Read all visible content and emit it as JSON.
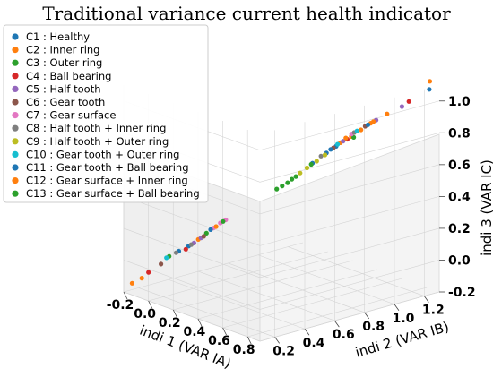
{
  "chart_data": {
    "type": "scatter",
    "title": "Traditional variance current health indicator",
    "xlabel": "indi 1 (VAR IA)",
    "ylabel": "indi 2 (VAR IB)",
    "zlabel": "indi 3 (VAR IC)",
    "x_ticks": [
      "-0.2",
      "0.0",
      "0.2",
      "0.4",
      "0.6",
      "0.8"
    ],
    "y_ticks": [
      "0.2",
      "0.4",
      "0.6",
      "0.8",
      "1.0",
      "1.2"
    ],
    "z_ticks": [
      "-0.2",
      "0.0",
      "0.2",
      "0.4",
      "0.6",
      "0.8",
      "1.0"
    ],
    "xlim": [
      -0.2,
      0.9
    ],
    "ylim": [
      0.1,
      1.3
    ],
    "zlim": [
      -0.2,
      1.1
    ],
    "grid": true,
    "legend_position": "top-left",
    "series": [
      {
        "name": "C1 : Healthy",
        "color": "#1f77b4",
        "points": [
          [
            -0.02,
            0.32,
            0.05
          ],
          [
            0.01,
            0.36,
            0.08
          ],
          [
            0.48,
            0.8,
            0.62
          ],
          [
            0.52,
            0.86,
            0.68
          ],
          [
            0.55,
            0.9,
            0.72
          ],
          [
            0.88,
            1.25,
            1.08
          ]
        ]
      },
      {
        "name": "C2 : Inner ring",
        "color": "#ff7f0e",
        "points": [
          [
            -0.18,
            0.14,
            -0.15
          ],
          [
            -0.15,
            0.18,
            -0.12
          ],
          [
            0.04,
            0.4,
            0.12
          ],
          [
            0.56,
            0.92,
            0.74
          ],
          [
            0.6,
            0.96,
            0.78
          ],
          [
            0.63,
            1.0,
            0.82
          ],
          [
            0.66,
            1.04,
            0.86
          ],
          [
            0.86,
            1.27,
            1.12
          ]
        ]
      },
      {
        "name": "C3 : Outer ring",
        "color": "#2ca02c",
        "points": [
          [
            -0.05,
            0.28,
            0.02
          ],
          [
            0.07,
            0.43,
            0.16
          ],
          [
            0.36,
            0.66,
            0.46
          ],
          [
            0.4,
            0.7,
            0.5
          ],
          [
            0.43,
            0.73,
            0.54
          ],
          [
            0.62,
            0.96,
            0.78
          ]
        ]
      },
      {
        "name": "C4 : Ball bearing",
        "color": "#d62728",
        "points": [
          [
            -0.12,
            0.2,
            -0.08
          ],
          [
            0.0,
            0.35,
            0.06
          ],
          [
            0.58,
            0.95,
            0.76
          ],
          [
            0.8,
            1.18,
            1.0
          ]
        ]
      },
      {
        "name": "C5 : Half tooth",
        "color": "#9467bd",
        "points": [
          [
            0.03,
            0.38,
            0.1
          ],
          [
            0.05,
            0.41,
            0.13
          ],
          [
            0.57,
            0.93,
            0.75
          ],
          [
            0.68,
            1.06,
            0.88
          ],
          [
            0.78,
            1.15,
            0.97
          ]
        ]
      },
      {
        "name": "C6 : Gear tooth",
        "color": "#8c564b",
        "points": [
          [
            -0.08,
            0.25,
            -0.03
          ],
          [
            0.06,
            0.42,
            0.14
          ],
          [
            0.54,
            0.89,
            0.71
          ],
          [
            0.64,
            1.02,
            0.84
          ]
        ]
      },
      {
        "name": "C7 : Gear surface",
        "color": "#e377c2",
        "points": [
          [
            0.09,
            0.46,
            0.19
          ],
          [
            0.11,
            0.49,
            0.22
          ],
          [
            0.13,
            0.51,
            0.24
          ],
          [
            0.59,
            0.97,
            0.79
          ]
        ]
      },
      {
        "name": "C8 : Half tooth + Inner ring",
        "color": "#7f7f7f",
        "points": [
          [
            -0.03,
            0.31,
            0.04
          ],
          [
            0.02,
            0.37,
            0.09
          ],
          [
            0.5,
            0.84,
            0.66
          ],
          [
            0.6,
            0.98,
            0.8
          ]
        ]
      },
      {
        "name": "C9 : Half tooth + Outer ring",
        "color": "#bcbd22",
        "points": [
          [
            0.44,
            0.75,
            0.56
          ],
          [
            0.46,
            0.78,
            0.59
          ],
          [
            0.49,
            0.82,
            0.63
          ],
          [
            0.52,
            0.85,
            0.67
          ]
        ]
      },
      {
        "name": "C10 : Gear tooth + Outer ring",
        "color": "#17becf",
        "points": [
          [
            -0.06,
            0.27,
            0.01
          ],
          [
            0.55,
            0.91,
            0.73
          ],
          [
            0.61,
            0.99,
            0.81
          ]
        ]
      },
      {
        "name": "C11 : Gear tooth + Ball bearing",
        "color": "#1f77b4",
        "points": [
          [
            0.08,
            0.45,
            0.18
          ],
          [
            0.53,
            0.88,
            0.7
          ],
          [
            0.65,
            1.03,
            0.85
          ]
        ]
      },
      {
        "name": "C12 : Gear surface + Inner ring",
        "color": "#ff7f0e",
        "points": [
          [
            0.1,
            0.47,
            0.2
          ],
          [
            0.58,
            0.94,
            0.77
          ],
          [
            0.67,
            1.05,
            0.87
          ],
          [
            0.72,
            1.1,
            0.92
          ]
        ]
      },
      {
        "name": "C13 : Gear surface + Ball bearing",
        "color": "#2ca02c",
        "points": [
          [
            0.12,
            0.5,
            0.23
          ],
          [
            0.38,
            0.68,
            0.48
          ],
          [
            0.41,
            0.72,
            0.52
          ],
          [
            0.47,
            0.8,
            0.61
          ]
        ]
      }
    ]
  }
}
